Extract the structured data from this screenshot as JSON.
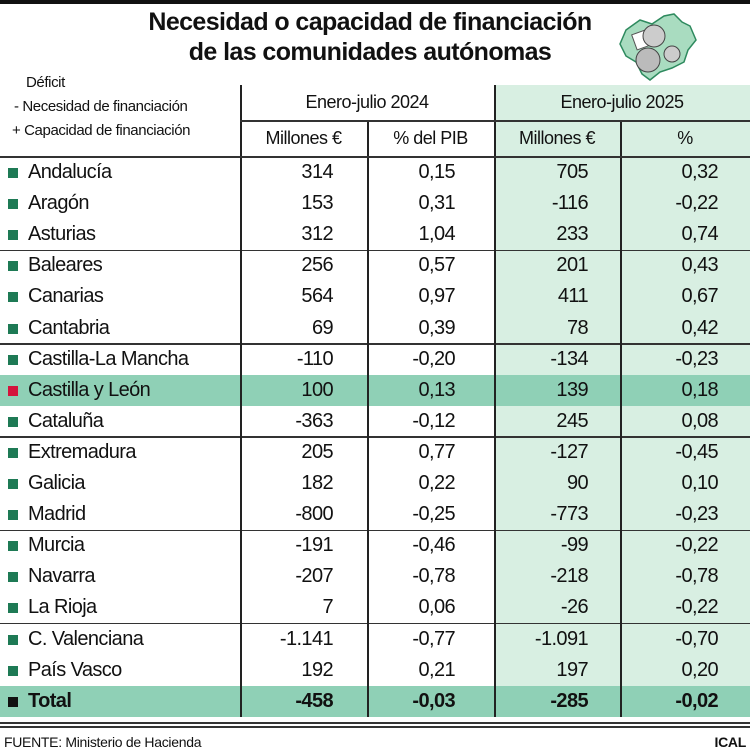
{
  "title_line1": "Necesidad o capacidad de financiación",
  "title_line2": "de las comunidades autónomas",
  "legend": [
    "Déficit",
    "- Necesidad de financiación",
    "+ Capacidad de financiación"
  ],
  "colors": {
    "marker": "#1e7a55",
    "highlight_marker": "#d4143c",
    "total_marker": "#111111",
    "highlight_bg": "#8fd0b6",
    "column_2025_bg": "#d8efe2"
  },
  "logo_icon": "castilla-y-leon-map-with-coins",
  "chart_data": {
    "type": "table",
    "period_headers": [
      "Enero-julio 2024",
      "Enero-julio 2025"
    ],
    "column_headers": [
      "Millones €",
      "% del PIB",
      "Millones €",
      "%"
    ],
    "rows": [
      {
        "name": "Andalucía",
        "values": [
          "314",
          "0,15",
          "705",
          "0,32"
        ]
      },
      {
        "name": "Aragón",
        "values": [
          "153",
          "0,31",
          "-116",
          "-0,22"
        ]
      },
      {
        "name": "Asturias",
        "values": [
          "312",
          "1,04",
          "233",
          "0,74"
        ]
      },
      {
        "name": "Baleares",
        "values": [
          "256",
          "0,57",
          "201",
          "0,43"
        ]
      },
      {
        "name": "Canarias",
        "values": [
          "564",
          "0,97",
          "411",
          "0,67"
        ]
      },
      {
        "name": "Cantabria",
        "values": [
          "69",
          "0,39",
          "78",
          "0,42"
        ]
      },
      {
        "name": "Castilla-La Mancha",
        "values": [
          "-110",
          "-0,20",
          "-134",
          "-0,23"
        ]
      },
      {
        "name": "Castilla y León",
        "values": [
          "100",
          "0,13",
          "139",
          "0,18"
        ],
        "highlight": true
      },
      {
        "name": "Cataluña",
        "values": [
          "-363",
          "-0,12",
          "245",
          "0,08"
        ]
      },
      {
        "name": "Extremadura",
        "values": [
          "205",
          "0,77",
          "-127",
          "-0,45"
        ]
      },
      {
        "name": "Galicia",
        "values": [
          "182",
          "0,22",
          "90",
          "0,10"
        ]
      },
      {
        "name": "Madrid",
        "values": [
          "-800",
          "-0,25",
          "-773",
          "-0,23"
        ]
      },
      {
        "name": "Murcia",
        "values": [
          "-191",
          "-0,46",
          "-99",
          "-0,22"
        ]
      },
      {
        "name": "Navarra",
        "values": [
          "-207",
          "-0,78",
          "-218",
          "-0,78"
        ]
      },
      {
        "name": "La Rioja",
        "values": [
          "7",
          "0,06",
          "-26",
          "-0,22"
        ]
      },
      {
        "name": "C. Valenciana",
        "values": [
          "-1.141",
          "-0,77",
          "-1.091",
          "-0,70"
        ]
      },
      {
        "name": "País Vasco",
        "values": [
          "192",
          "0,21",
          "197",
          "0,20"
        ]
      },
      {
        "name": "Total",
        "values": [
          "-458",
          "-0,03",
          "-285",
          "-0,02"
        ],
        "total": true
      }
    ]
  },
  "footer": {
    "source": "FUENTE: Ministerio de Hacienda",
    "credit": "ICAL"
  }
}
